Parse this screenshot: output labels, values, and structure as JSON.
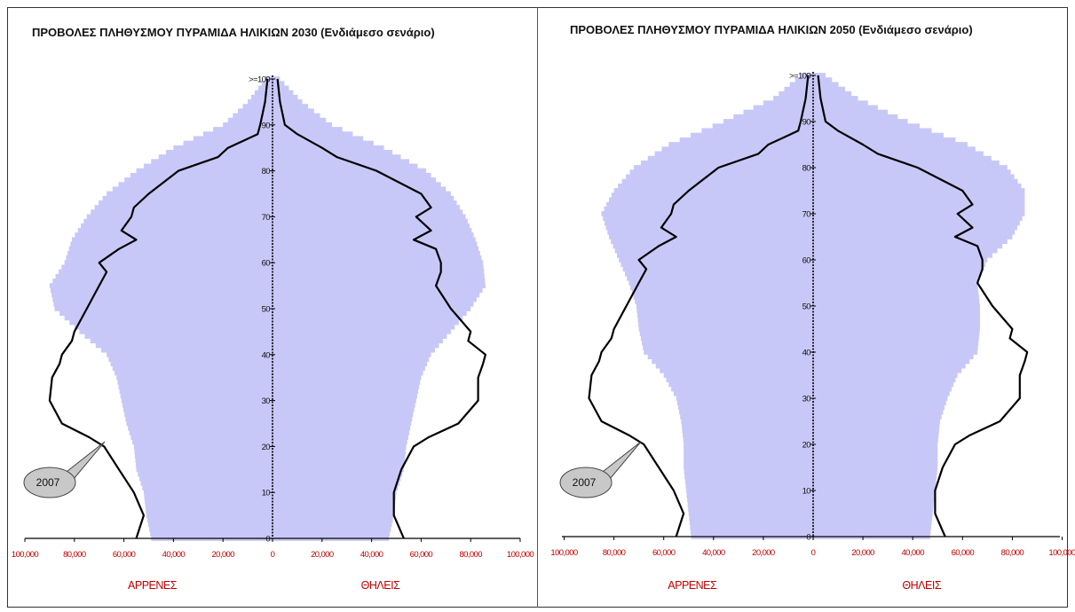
{
  "chart_data": [
    {
      "type": "population-pyramid",
      "title": "ΠΡΟΒΟΛΕΣ ΠΛΗΘΥΣΜΟΥ ΠΥΡΑΜΙΔΑ ΗΛΙΚΙΩΝ 2030 (Ενδιάμεσο σενάριο)",
      "x_tick_labels": [
        "100,000",
        "80,000",
        "60,000",
        "40,000",
        "20,000",
        "0",
        "20,000",
        "40,000",
        "60,000",
        "80,000",
        "100,000"
      ],
      "x_ticks": [
        -100000,
        -80000,
        -60000,
        -40000,
        -20000,
        0,
        20000,
        40000,
        60000,
        80000,
        100000
      ],
      "y_tick_labels": [
        "0",
        "10",
        "20",
        "30",
        "40",
        "50",
        "60",
        "70",
        "80",
        "90",
        ">=100"
      ],
      "y_ticks": [
        0,
        10,
        20,
        30,
        40,
        50,
        60,
        70,
        80,
        90,
        100
      ],
      "xlim": [
        -100000,
        100000
      ],
      "ylim": [
        0,
        100
      ],
      "left_label": "ΑΡΡΕΝΕΣ",
      "right_label": "ΘΗΛΕΙΣ",
      "callout": "2007",
      "colors": {
        "projection_bars": "#c8c8f8",
        "line_2007": "#000000",
        "axis_labels": "#c00000",
        "callout_fill": "#c8c8c8"
      },
      "projection": {
        "ages": [
          0,
          5,
          10,
          15,
          20,
          25,
          30,
          35,
          40,
          45,
          50,
          55,
          60,
          65,
          70,
          75,
          80,
          85,
          90,
          95,
          100
        ],
        "males": [
          49000,
          51000,
          52000,
          55000,
          56000,
          59000,
          61000,
          63000,
          67000,
          78000,
          88000,
          90000,
          84000,
          81000,
          75000,
          67000,
          55000,
          40000,
          20000,
          10000,
          3000
        ],
        "females": [
          47000,
          49000,
          50000,
          53000,
          54000,
          56000,
          58000,
          60000,
          64000,
          72000,
          80000,
          86000,
          85000,
          82000,
          78000,
          72000,
          62000,
          45000,
          24000,
          12000,
          3000
        ]
      },
      "line_2007": {
        "ages": [
          0,
          5,
          10,
          15,
          20,
          22,
          25,
          30,
          35,
          38,
          40,
          43,
          45,
          50,
          55,
          58,
          60,
          63,
          65,
          67,
          70,
          72,
          75,
          80,
          83,
          85,
          88,
          90,
          95,
          100
        ],
        "males": [
          55000,
          52000,
          56000,
          62000,
          68000,
          74000,
          85000,
          90000,
          89000,
          86000,
          85000,
          81000,
          80000,
          75000,
          70000,
          67000,
          70000,
          62000,
          55000,
          61000,
          57000,
          56000,
          50000,
          38000,
          22000,
          18000,
          6000,
          5000,
          3000,
          2000
        ],
        "females": [
          53000,
          49000,
          49000,
          52000,
          57000,
          63000,
          75000,
          83000,
          83000,
          85000,
          86000,
          79000,
          80000,
          72000,
          66000,
          68000,
          68000,
          66000,
          57000,
          64000,
          58000,
          64000,
          60000,
          42000,
          26000,
          20000,
          10000,
          5000,
          3000,
          2000
        ]
      }
    },
    {
      "type": "population-pyramid",
      "title": "ΠΡΟΒΟΛΕΣ ΠΛΗΘΥΣΜΟΥ ΠΥΡΑΜΙΔΑ ΗΛΙΚΙΩΝ 2050 (Ενδιάμεσο σενάριο)",
      "x_tick_labels": [
        "100,000",
        "80,000",
        "60,000",
        "40,000",
        "20,000",
        "0",
        "20,000",
        "40,000",
        "60,000",
        "80,000",
        "100,000"
      ],
      "x_ticks": [
        -100000,
        -80000,
        -60000,
        -40000,
        -20000,
        0,
        20000,
        40000,
        60000,
        80000,
        100000
      ],
      "y_tick_labels": [
        "0",
        "10",
        "20",
        "30",
        "40",
        "50",
        "60",
        "70",
        "80",
        "90",
        ">=100"
      ],
      "y_ticks": [
        0,
        10,
        20,
        30,
        40,
        50,
        60,
        70,
        80,
        90,
        100
      ],
      "xlim": [
        -100000,
        100000
      ],
      "ylim": [
        0,
        100
      ],
      "left_label": "ΑΡΡΕΝΕΣ",
      "right_label": "ΘΗΛΕΙΣ",
      "callout": "2007",
      "colors": {
        "projection_bars": "#c8c8f8",
        "line_2007": "#000000",
        "axis_labels": "#c00000",
        "callout_fill": "#c8c8c8"
      },
      "projection": {
        "ages": [
          0,
          5,
          10,
          15,
          20,
          25,
          30,
          35,
          40,
          45,
          50,
          55,
          60,
          65,
          70,
          75,
          80,
          85,
          90,
          95,
          100
        ],
        "males": [
          49000,
          50000,
          51000,
          52000,
          52000,
          53000,
          55000,
          60000,
          68000,
          70000,
          71000,
          74000,
          78000,
          82000,
          85000,
          80000,
          72000,
          58000,
          36000,
          16000,
          5000
        ],
        "females": [
          47000,
          48000,
          49000,
          50000,
          50000,
          51000,
          54000,
          58000,
          66000,
          67000,
          67000,
          66000,
          70000,
          80000,
          85000,
          85000,
          78000,
          62000,
          38000,
          18000,
          5000
        ]
      },
      "line_2007": {
        "ages": [
          0,
          5,
          10,
          15,
          20,
          22,
          25,
          30,
          35,
          38,
          40,
          43,
          45,
          50,
          55,
          58,
          60,
          63,
          65,
          67,
          70,
          72,
          75,
          80,
          83,
          85,
          88,
          90,
          95,
          100
        ],
        "males": [
          55000,
          52000,
          56000,
          62000,
          68000,
          74000,
          85000,
          90000,
          89000,
          86000,
          85000,
          81000,
          80000,
          75000,
          70000,
          67000,
          70000,
          62000,
          55000,
          61000,
          57000,
          56000,
          50000,
          38000,
          22000,
          18000,
          6000,
          5000,
          3000,
          2000
        ],
        "females": [
          53000,
          49000,
          49000,
          52000,
          57000,
          63000,
          75000,
          83000,
          83000,
          85000,
          86000,
          79000,
          80000,
          72000,
          66000,
          68000,
          68000,
          66000,
          57000,
          64000,
          58000,
          64000,
          60000,
          42000,
          26000,
          20000,
          10000,
          5000,
          3000,
          2000
        ]
      }
    }
  ]
}
